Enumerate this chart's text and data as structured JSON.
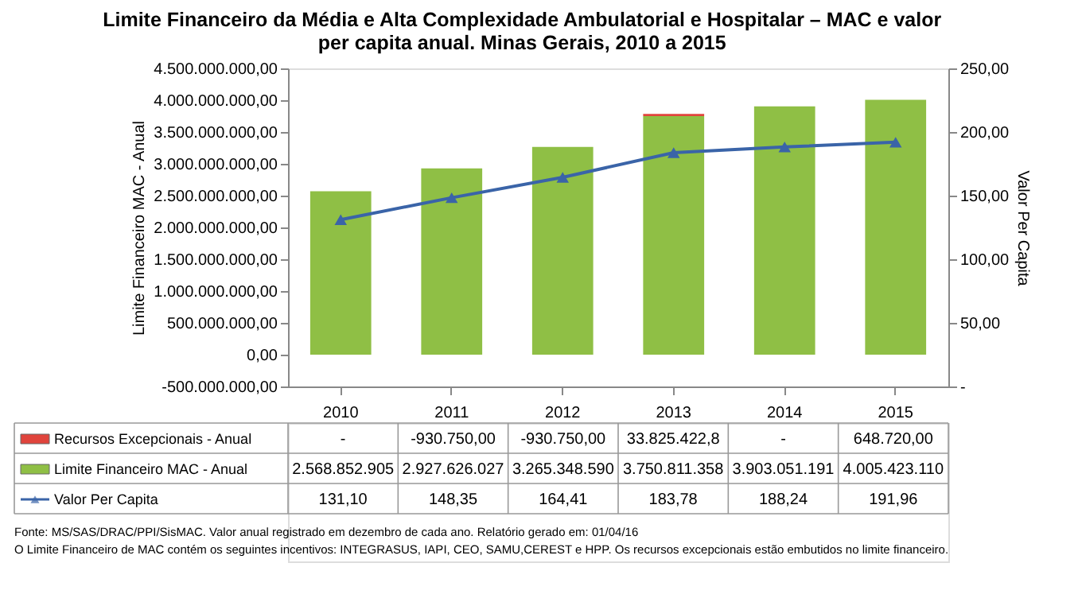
{
  "chart_data": {
    "type": "bar",
    "stacked": true,
    "title": "Limite Financeiro da Média e Alta Complexidade Ambulatorial e Hospitalar – MAC e valor per capita anual. Minas Gerais, 2010 a 2015",
    "categories": [
      "2010",
      "2011",
      "2012",
      "2013",
      "2014",
      "2015"
    ],
    "series": [
      {
        "name": "Limite Financeiro MAC - Anual",
        "color": "#8fbf45",
        "values": [
          2568852905,
          2927626027,
          3265348590,
          3750811358,
          3903051191,
          4005423110
        ],
        "value_labels": [
          "2.568.852.905",
          "2.927.626.027",
          "3.265.348.590",
          "3.750.811.358",
          "3.903.051.191",
          "4.005.423.110"
        ]
      },
      {
        "name": "Recursos Excepcionais - Anual",
        "color": "#e0443c",
        "values": [
          null,
          -930750,
          -930750,
          33825422.8,
          null,
          648720
        ],
        "value_labels": [
          "-",
          "-930.750,00",
          "-930.750,00",
          "33.825.422,8",
          "-",
          "648.720,00"
        ]
      },
      {
        "name": "Valor Per Capita",
        "type": "line",
        "axis": "y2",
        "color": "#3a64a8",
        "values": [
          131.1,
          148.35,
          164.41,
          183.78,
          188.24,
          191.96
        ],
        "value_labels": [
          "131,10",
          "148,35",
          "164,41",
          "183,78",
          "188,24",
          "191,96"
        ]
      }
    ],
    "ylabel": "Limite Financeiro MAC - Anual",
    "y2label": "Valor Per Capita",
    "ylim": [
      -500000000,
      4500000000
    ],
    "yticks": [
      {
        "value": -500000000,
        "label": "-500.000.000,00"
      },
      {
        "value": 0,
        "label": "0,00"
      },
      {
        "value": 500000000,
        "label": "500.000.000,00"
      },
      {
        "value": 1000000000,
        "label": "1.000.000.000,00"
      },
      {
        "value": 1500000000,
        "label": "1.500.000.000,00"
      },
      {
        "value": 2000000000,
        "label": "2.000.000.000,00"
      },
      {
        "value": 2500000000,
        "label": "2.500.000.000,00"
      },
      {
        "value": 3000000000,
        "label": "3.000.000.000,00"
      },
      {
        "value": 3500000000,
        "label": "3.500.000.000,00"
      },
      {
        "value": 4000000000,
        "label": "4.000.000.000,00"
      },
      {
        "value": 4500000000,
        "label": "4.500.000.000,00"
      }
    ],
    "y2lim": [
      0,
      250
    ],
    "y2ticks": [
      {
        "value": 0,
        "label": "-"
      },
      {
        "value": 50,
        "label": "50,00"
      },
      {
        "value": 100,
        "label": "100,00"
      },
      {
        "value": 150,
        "label": "150,00"
      },
      {
        "value": 200,
        "label": "200,00"
      },
      {
        "value": 250,
        "label": "250,00"
      }
    ],
    "marker": "triangle",
    "grid": false,
    "legend": "bottom",
    "annotations": [
      "Fonte: MS/SAS/DRAC/PPI/SisMAC. Valor anual registrado em dezembro de  cada ano. Relatório gerado em: 01/04/16",
      "O Limite Financeiro de MAC contém os seguintes incentivos: INTEGRASUS, IAPI, CEO, SAMU,CEREST e HPP. Os recursos excepcionais estão embutidos no limite financeiro."
    ]
  }
}
